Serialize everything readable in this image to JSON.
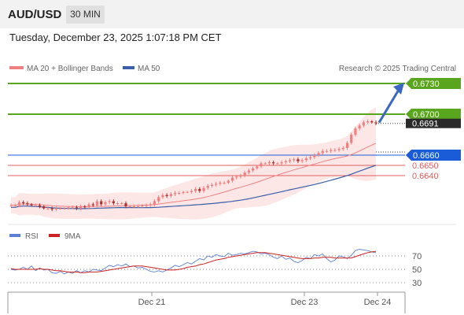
{
  "header": {
    "pair": "AUD/USD",
    "interval": "30 MIN"
  },
  "timestamp": "Tuesday, December 23, 2025 1:07:18 PM CET",
  "colors": {
    "up": "#f08080",
    "down": "#b03030",
    "ma20": "#f08080",
    "ma50": "#3a5fa8",
    "resistance": "#5aa51e",
    "pivot": "#1a5cd8",
    "support": "#e06060",
    "rsi": "#5b7fd4",
    "rsi_ma": "#cc2222",
    "arrow": "#3a68c0"
  },
  "chart_data": [
    {
      "type": "candlestick",
      "title": "AUD/USD 30 MIN",
      "legend": [
        {
          "name": "MA 20 + Bollinger Bands",
          "color": "#f08080"
        },
        {
          "name": "MA 50",
          "color": "#3a5fa8"
        }
      ],
      "legend_placement": "top-left",
      "source": "Research © 2025 Trading Central",
      "x_ticks": [
        "Dec 21",
        "Dec 23",
        "Dec 24"
      ],
      "y_range": [
        0.66,
        0.674
      ],
      "last_price": 0.6691,
      "levels": [
        {
          "label": "0.6730",
          "value": 0.673,
          "kind": "resistance"
        },
        {
          "label": "0.6700",
          "value": 0.67,
          "kind": "resistance"
        },
        {
          "label": "0.6691",
          "value": 0.6691,
          "kind": "last"
        },
        {
          "label": "0.6660",
          "value": 0.666,
          "kind": "pivot"
        },
        {
          "label": "0.6650",
          "value": 0.665,
          "kind": "support"
        },
        {
          "label": "0.6640",
          "value": 0.664,
          "kind": "support"
        }
      ],
      "target_arrow": {
        "from": 0.6691,
        "to": 0.673
      },
      "close": [
        0.6611,
        0.6611,
        0.6614,
        0.6613,
        0.6612,
        0.6611,
        0.6611,
        0.661,
        0.6608,
        0.6608,
        0.6607,
        0.6608,
        0.6608,
        0.6608,
        0.6609,
        0.6609,
        0.6608,
        0.661,
        0.6609,
        0.6612,
        0.6611,
        0.6615,
        0.6612,
        0.6614,
        0.6615,
        0.6613,
        0.6613,
        0.6613,
        0.661,
        0.661,
        0.661,
        0.661,
        0.6611,
        0.6611,
        0.6612,
        0.6615,
        0.6619,
        0.6621,
        0.662,
        0.6622,
        0.6623,
        0.6623,
        0.6624,
        0.6624,
        0.6625,
        0.6627,
        0.6625,
        0.6628,
        0.663,
        0.6631,
        0.6632,
        0.6633,
        0.6633,
        0.6635,
        0.6638,
        0.6639,
        0.664,
        0.6643,
        0.6645,
        0.6647,
        0.6649,
        0.6652,
        0.6652,
        0.6653,
        0.6652,
        0.6652,
        0.6653,
        0.6654,
        0.6655,
        0.6656,
        0.6654,
        0.6655,
        0.6657,
        0.6658,
        0.666,
        0.6662,
        0.6664,
        0.6664,
        0.6665,
        0.6665,
        0.6666,
        0.6667,
        0.6672,
        0.668,
        0.6686,
        0.6689,
        0.6692,
        0.6693,
        0.6692,
        0.6691
      ],
      "volatility": [
        0.0003,
        0.0003,
        0.0003,
        0.0003,
        0.0003,
        0.0002,
        0.0003,
        0.0003,
        0.0002,
        0.0003,
        0.0003,
        0.0003,
        0.0002,
        0.0002,
        0.0002,
        0.0003,
        0.0003,
        0.0003,
        0.0002,
        0.0003,
        0.0003,
        0.0003,
        0.0003,
        0.0003,
        0.0003,
        0.0003,
        0.0003,
        0.0002,
        0.0003,
        0.0002,
        0.0003,
        0.0003,
        0.0002,
        0.0003,
        0.0003,
        0.0003,
        0.0003,
        0.0003,
        0.0003,
        0.0003,
        0.0003,
        0.0003,
        0.0002,
        0.0002,
        0.0003,
        0.0003,
        0.0003,
        0.0003,
        0.0003,
        0.0003,
        0.0003,
        0.0003,
        0.0003,
        0.0002,
        0.0003,
        0.0003,
        0.0003,
        0.0003,
        0.0003,
        0.0003,
        0.0002,
        0.0003,
        0.0002,
        0.0003,
        0.0003,
        0.0002,
        0.0003,
        0.0003,
        0.0003,
        0.0003,
        0.0003,
        0.0003,
        0.0003,
        0.0003,
        0.0003,
        0.0003,
        0.0003,
        0.0003,
        0.0003,
        0.0003,
        0.0003,
        0.0003,
        0.0003,
        0.0003,
        0.0003,
        0.0003,
        0.0003,
        0.0003,
        0.0002,
        0.0003
      ]
    },
    {
      "type": "line",
      "legend": [
        {
          "name": "RSI",
          "color": "#5b7fd4"
        },
        {
          "name": "9MA",
          "color": "#cc2222"
        }
      ],
      "y_ticks": [
        70,
        50,
        30
      ],
      "y_range": [
        15,
        95
      ],
      "series": [
        {
          "name": "RSI",
          "values": [
            50,
            49,
            50,
            53,
            50,
            55,
            48,
            52,
            49,
            50,
            45,
            44,
            47,
            43,
            46,
            44,
            48,
            45,
            48,
            46,
            50,
            49,
            48,
            52,
            56,
            54,
            57,
            55,
            58,
            54,
            55,
            52,
            53,
            50,
            47,
            46,
            48,
            46,
            49,
            52,
            56,
            54,
            57,
            60,
            58,
            62,
            66,
            64,
            70,
            68,
            72,
            70,
            69,
            74,
            71,
            72,
            74,
            73,
            75,
            77,
            76,
            73,
            74,
            72,
            68,
            66,
            70,
            65,
            67,
            62,
            60,
            63,
            68,
            66,
            72,
            70,
            73,
            66,
            61,
            64,
            70,
            69,
            66,
            71,
            78,
            80,
            79,
            78,
            76,
            75
          ]
        },
        {
          "name": "9MA",
          "values": [
            51,
            50,
            50,
            50,
            50,
            50,
            50,
            51,
            50,
            50,
            49,
            48,
            48,
            47,
            46,
            46,
            46,
            45,
            45,
            46,
            46,
            46,
            47,
            48,
            49,
            50,
            51,
            52,
            53,
            54,
            55,
            55,
            55,
            54,
            53,
            52,
            51,
            50,
            49,
            49,
            49,
            50,
            51,
            53,
            54,
            55,
            57,
            58,
            60,
            62,
            64,
            65,
            66,
            68,
            69,
            70,
            71,
            72,
            73,
            74,
            75,
            75,
            75,
            74,
            73,
            72,
            71,
            70,
            69,
            68,
            67,
            66,
            66,
            66,
            67,
            67,
            68,
            68,
            68,
            67,
            67,
            67,
            67,
            67,
            69,
            71,
            73,
            75,
            76,
            77
          ]
        }
      ]
    }
  ]
}
